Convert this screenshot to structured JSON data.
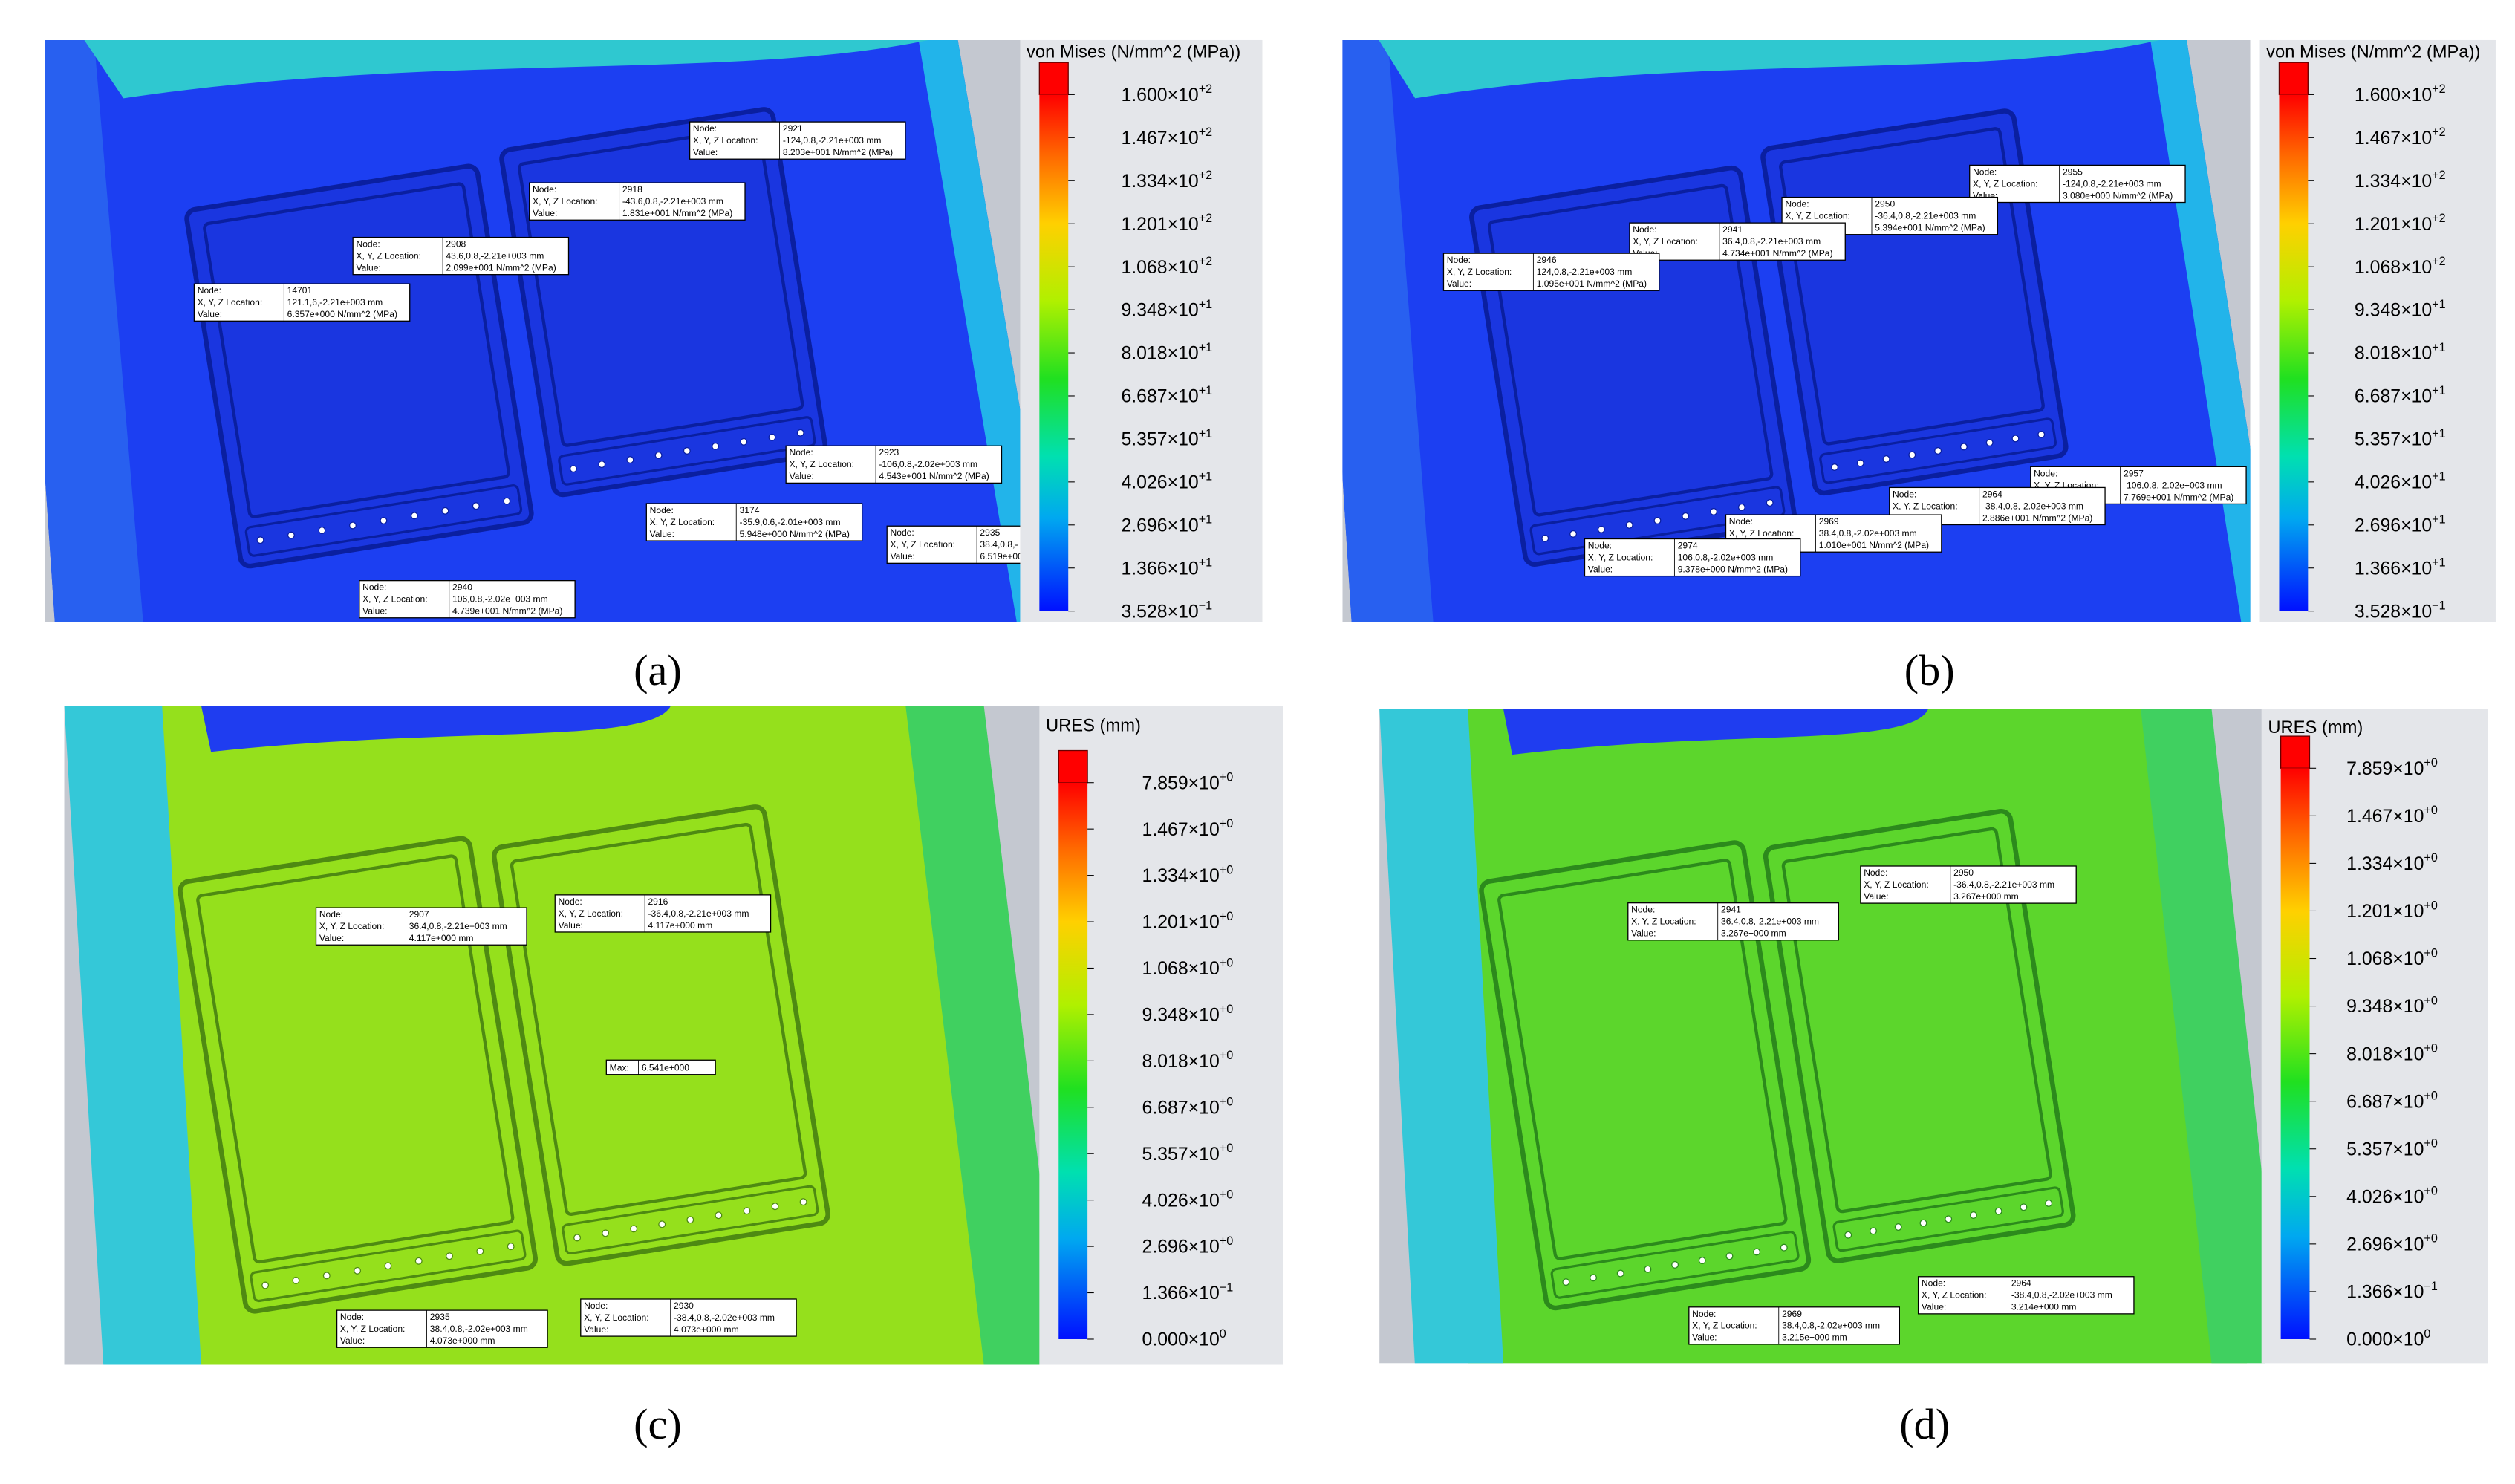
{
  "probe_labels": {
    "node": "Node:",
    "location": "X, Y, Z Location:",
    "value": "Value:",
    "max": "Max:"
  },
  "panels": [
    {
      "caption": "(a)",
      "legend": {
        "title": "von Mises (N/mm^2 (MPa))",
        "ticks": [
          {
            "mantissa": "1.600×10",
            "exponent": "+2"
          },
          {
            "mantissa": "1.467×10",
            "exponent": "+2"
          },
          {
            "mantissa": "1.334×10",
            "exponent": "+2"
          },
          {
            "mantissa": "1.201×10",
            "exponent": "+2"
          },
          {
            "mantissa": "1.068×10",
            "exponent": "+2"
          },
          {
            "mantissa": "9.348×10",
            "exponent": "+1"
          },
          {
            "mantissa": "8.018×10",
            "exponent": "+1"
          },
          {
            "mantissa": "6.687×10",
            "exponent": "+1"
          },
          {
            "mantissa": "5.357×10",
            "exponent": "+1"
          },
          {
            "mantissa": "4.026×10",
            "exponent": "+1"
          },
          {
            "mantissa": "2.696×10",
            "exponent": "+1"
          },
          {
            "mantissa": "1.366×10",
            "exponent": "+1"
          },
          {
            "mantissa": "3.528×10",
            "exponent": "−1"
          }
        ]
      },
      "probes": [
        {
          "node": "2921",
          "location": "-124,0.8,-2.21e+003 mm",
          "value": "8.203e+001 N/mm^2 (MPa)"
        },
        {
          "node": "2918",
          "location": "-43.6,0.8,-2.21e+003 mm",
          "value": "1.831e+001 N/mm^2 (MPa)"
        },
        {
          "node": "2908",
          "location": "43.6,0.8,-2.21e+003 mm",
          "value": "2.099e+001 N/mm^2 (MPa)"
        },
        {
          "node": "14701",
          "location": "121.1,6,-2.21e+003 mm",
          "value": "6.357e+000 N/mm^2 (MPa)"
        },
        {
          "node": "2923",
          "location": "-106,0.8,-2.02e+003 mm",
          "value": "4.543e+001 N/mm^2 (MPa)"
        },
        {
          "node": "3174",
          "location": "-35.9,0.6,-2.01e+003 mm",
          "value": "5.948e+000 N/mm^2 (MPa)"
        },
        {
          "node": "2935",
          "location": "38.4,0.8,-",
          "value": "6.519e+00"
        },
        {
          "node": "2940",
          "location": "106,0.8,-2.02e+003 mm",
          "value": "4.739e+001 N/mm^2 (MPa)"
        }
      ]
    },
    {
      "caption": "(b)",
      "legend": {
        "title": "von Mises (N/mm^2 (MPa))",
        "ticks": [
          {
            "mantissa": "1.600×10",
            "exponent": "+2"
          },
          {
            "mantissa": "1.467×10",
            "exponent": "+2"
          },
          {
            "mantissa": "1.334×10",
            "exponent": "+2"
          },
          {
            "mantissa": "1.201×10",
            "exponent": "+2"
          },
          {
            "mantissa": "1.068×10",
            "exponent": "+2"
          },
          {
            "mantissa": "9.348×10",
            "exponent": "+1"
          },
          {
            "mantissa": "8.018×10",
            "exponent": "+1"
          },
          {
            "mantissa": "6.687×10",
            "exponent": "+1"
          },
          {
            "mantissa": "5.357×10",
            "exponent": "+1"
          },
          {
            "mantissa": "4.026×10",
            "exponent": "+1"
          },
          {
            "mantissa": "2.696×10",
            "exponent": "+1"
          },
          {
            "mantissa": "1.366×10",
            "exponent": "+1"
          },
          {
            "mantissa": "3.528×10",
            "exponent": "−1"
          }
        ]
      },
      "probes": [
        {
          "node": "2955",
          "location": "-124,0.8,-2.21e+003 mm",
          "value": "3.080e+000 N/mm^2 (MPa)"
        },
        {
          "node": "2950",
          "location": "-36.4,0.8,-2.21e+003 mm",
          "value": "5.394e+001 N/mm^2 (MPa)"
        },
        {
          "node": "2941",
          "location": "36.4,0.8,-2.21e+003 mm",
          "value": "4.734e+001 N/mm^2 (MPa)"
        },
        {
          "node": "2946",
          "location": "124,0.8,-2.21e+003 mm",
          "value": "1.095e+001 N/mm^2 (MPa)"
        },
        {
          "node": "2957",
          "location": "-106,0.8,-2.02e+003 mm",
          "value": "7.769e+001 N/mm^2 (MPa)"
        },
        {
          "node": "2964",
          "location": "-38.4,0.8,-2.02e+003 mm",
          "value": "2.886e+001 N/mm^2 (MPa)"
        },
        {
          "node": "2969",
          "location": "38.4,0.8,-2.02e+003 mm",
          "value": "1.010e+001 N/mm^2 (MPa)"
        },
        {
          "node": "2974",
          "location": "106,0.8,-2.02e+003 mm",
          "value": "9.378e+000 N/mm^2 (MPa)"
        }
      ]
    },
    {
      "caption": "(c)",
      "legend": {
        "title": "URES (mm)",
        "ticks": [
          {
            "mantissa": "7.859×10",
            "exponent": "+0"
          },
          {
            "mantissa": "1.467×10",
            "exponent": "+0"
          },
          {
            "mantissa": "1.334×10",
            "exponent": "+0"
          },
          {
            "mantissa": "1.201×10",
            "exponent": "+0"
          },
          {
            "mantissa": "1.068×10",
            "exponent": "+0"
          },
          {
            "mantissa": "9.348×10",
            "exponent": "+0"
          },
          {
            "mantissa": "8.018×10",
            "exponent": "+0"
          },
          {
            "mantissa": "6.687×10",
            "exponent": "+0"
          },
          {
            "mantissa": "5.357×10",
            "exponent": "+0"
          },
          {
            "mantissa": "4.026×10",
            "exponent": "+0"
          },
          {
            "mantissa": "2.696×10",
            "exponent": "+0"
          },
          {
            "mantissa": "1.366×10",
            "exponent": "−1"
          },
          {
            "mantissa": "0.000×10",
            "exponent": "0"
          }
        ]
      },
      "probes": [
        {
          "node": "2907",
          "location": "36.4,0.8,-2.21e+003 mm",
          "value": "4.117e+000 mm"
        },
        {
          "node": "2916",
          "location": "-36.4,0.8,-2.21e+003 mm",
          "value": "4.117e+000 mm"
        },
        {
          "node": "2935",
          "location": "38.4,0.8,-2.02e+003 mm",
          "value": "4.073e+000 mm"
        },
        {
          "node": "2930",
          "location": "-38.4,0.8,-2.02e+003 mm",
          "value": "4.073e+000 mm"
        }
      ],
      "max_value": "6.541e+000"
    },
    {
      "caption": "(d)",
      "legend": {
        "title": "URES (mm)",
        "ticks": [
          {
            "mantissa": "7.859×10",
            "exponent": "+0"
          },
          {
            "mantissa": "1.467×10",
            "exponent": "+0"
          },
          {
            "mantissa": "1.334×10",
            "exponent": "+0"
          },
          {
            "mantissa": "1.201×10",
            "exponent": "+0"
          },
          {
            "mantissa": "1.068×10",
            "exponent": "+0"
          },
          {
            "mantissa": "9.348×10",
            "exponent": "+0"
          },
          {
            "mantissa": "8.018×10",
            "exponent": "+0"
          },
          {
            "mantissa": "6.687×10",
            "exponent": "+0"
          },
          {
            "mantissa": "5.357×10",
            "exponent": "+0"
          },
          {
            "mantissa": "4.026×10",
            "exponent": "+0"
          },
          {
            "mantissa": "2.696×10",
            "exponent": "+0"
          },
          {
            "mantissa": "1.366×10",
            "exponent": "−1"
          },
          {
            "mantissa": "0.000×10",
            "exponent": "0"
          }
        ]
      },
      "probes": [
        {
          "node": "2950",
          "location": "-36.4,0.8,-2.21e+003 mm",
          "value": "3.267e+000 mm"
        },
        {
          "node": "2941",
          "location": "36.4,0.8,-2.21e+003 mm",
          "value": "3.267e+000 mm"
        },
        {
          "node": "2964",
          "location": "-38.4,0.8,-2.02e+003 mm",
          "value": "3.214e+000 mm"
        },
        {
          "node": "2969",
          "location": "38.4,0.8,-2.02e+003 mm",
          "value": "3.215e+000 mm"
        }
      ]
    }
  ]
}
